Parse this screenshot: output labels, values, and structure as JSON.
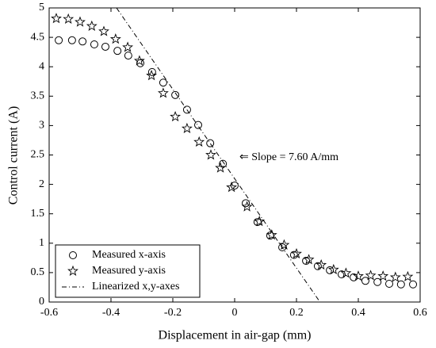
{
  "chart_data": {
    "type": "scatter",
    "xlabel": "Displacement in air-gap (mm)",
    "ylabel": "Control current (A)",
    "annotation": "⇐ Slope = 7.60 A/mm",
    "xlim": [
      -0.6,
      0.6
    ],
    "xticks": [
      -0.6,
      -0.4,
      -0.2,
      0,
      0.2,
      0.4,
      0.6
    ],
    "ylim": [
      0,
      5
    ],
    "yticks": [
      0,
      0.5,
      1,
      1.5,
      2,
      2.5,
      3,
      3.5,
      4,
      4.5,
      5
    ],
    "legend": "lower left",
    "series": [
      {
        "name": "Measured x-axis",
        "marker": "circle",
        "color": "#000000",
        "x": [
          -0.569,
          -0.526,
          -0.492,
          -0.454,
          -0.418,
          -0.379,
          -0.344,
          -0.305,
          -0.267,
          -0.231,
          -0.192,
          -0.154,
          -0.118,
          -0.079,
          -0.038,
          0,
          0.036,
          0.074,
          0.115,
          0.154,
          0.192,
          0.231,
          0.269,
          0.308,
          0.346,
          0.385,
          0.423,
          0.462,
          0.5,
          0.538,
          0.577
        ],
        "values": [
          4.45,
          4.45,
          4.43,
          4.38,
          4.34,
          4.27,
          4.19,
          4.06,
          3.91,
          3.73,
          3.52,
          3.27,
          3.01,
          2.7,
          2.35,
          1.98,
          1.68,
          1.36,
          1.13,
          0.93,
          0.8,
          0.7,
          0.61,
          0.54,
          0.47,
          0.42,
          0.36,
          0.34,
          0.31,
          0.3,
          0.3
        ]
      },
      {
        "name": "Measured y-axis",
        "marker": "star",
        "color": "#000000",
        "x": [
          -0.577,
          -0.538,
          -0.5,
          -0.462,
          -0.423,
          -0.385,
          -0.346,
          -0.308,
          -0.269,
          -0.231,
          -0.192,
          -0.154,
          -0.115,
          -0.077,
          -0.046,
          -0.01,
          0.04,
          0.08,
          0.12,
          0.16,
          0.2,
          0.24,
          0.28,
          0.32,
          0.36,
          0.4,
          0.44,
          0.48,
          0.52,
          0.56
        ],
        "values": [
          4.82,
          4.81,
          4.76,
          4.69,
          4.6,
          4.47,
          4.33,
          4.1,
          3.85,
          3.55,
          3.15,
          2.95,
          2.72,
          2.5,
          2.28,
          1.95,
          1.62,
          1.37,
          1.14,
          0.97,
          0.82,
          0.72,
          0.63,
          0.55,
          0.49,
          0.44,
          0.45,
          0.44,
          0.42,
          0.43
        ]
      },
      {
        "name": "Linearized x,y-axes",
        "marker": "line",
        "color": "#000000",
        "x": [
          -0.382,
          0.276
        ],
        "values": [
          5,
          0
        ]
      }
    ]
  }
}
